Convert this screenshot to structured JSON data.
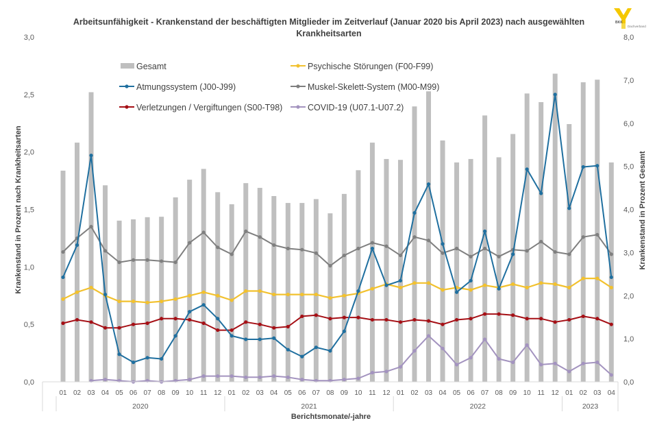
{
  "logo": {
    "text_top": "BKK",
    "text_side": "Dachverband",
    "color": "#f5c800"
  },
  "chart_data": {
    "type": "bar+line",
    "title": "Arbeitsunfähigkeit - Krankenstand der beschäftigten Mitglieder im Zeitverlauf (Januar 2020 bis April 2023) nach ausgewählten Krankheitsarten",
    "title_lines": [
      "Arbeitsunfähigkeit - Krankenstand der beschäftigten Mitglieder im Zeitverlauf (Januar 2020 bis April 2023) nach ausgewählten",
      "Krankheitsarten"
    ],
    "xlabel": "Berichtsmonate/-jahre",
    "ylabel_left": "Krankenstand in Prozent nach Krankheitsarten",
    "ylabel_right": "Krankenstand in Prozent Gesamt",
    "ylim_left": [
      0,
      3
    ],
    "ylim_right": [
      0,
      8
    ],
    "yticks_left": [
      "0,0",
      "0,5",
      "1,0",
      "1,5",
      "2,0",
      "2,5",
      "3,0"
    ],
    "yticks_right": [
      "0,0",
      "1,0",
      "2,0",
      "3,0",
      "4,0",
      "5,0",
      "6,0",
      "7,0",
      "8,0"
    ],
    "grid": false,
    "legend_position": "top-left (inside plot)",
    "years": [
      {
        "label": "2020",
        "months": 12
      },
      {
        "label": "2021",
        "months": 12
      },
      {
        "label": "2022",
        "months": 12
      },
      {
        "label": "2023",
        "months": 4
      }
    ],
    "categories": [
      "01",
      "02",
      "03",
      "04",
      "05",
      "06",
      "07",
      "08",
      "09",
      "10",
      "11",
      "12",
      "01",
      "02",
      "03",
      "04",
      "05",
      "06",
      "07",
      "08",
      "09",
      "10",
      "11",
      "12",
      "01",
      "02",
      "03",
      "04",
      "05",
      "06",
      "07",
      "08",
      "09",
      "10",
      "11",
      "12",
      "01",
      "02",
      "03",
      "04"
    ],
    "series": [
      {
        "name": "Gesamt",
        "type": "bar",
        "axis": "right",
        "color": "#bfbfbf",
        "values": [
          4.9,
          5.55,
          6.72,
          4.56,
          3.74,
          3.77,
          3.82,
          3.83,
          4.28,
          4.69,
          4.94,
          4.4,
          4.12,
          4.61,
          4.5,
          4.31,
          4.15,
          4.15,
          4.24,
          3.91,
          4.36,
          4.91,
          5.55,
          5.17,
          5.15,
          6.39,
          6.74,
          5.6,
          5.09,
          5.17,
          6.18,
          5.21,
          5.75,
          6.69,
          6.49,
          7.15,
          5.98,
          6.95,
          7.01,
          5.09
        ]
      },
      {
        "name": "Psychische Störungen (F00-F99)",
        "type": "line",
        "axis": "left",
        "color": "#f2c12e",
        "values": [
          0.72,
          0.78,
          0.82,
          0.75,
          0.7,
          0.7,
          0.69,
          0.7,
          0.72,
          0.75,
          0.78,
          0.75,
          0.71,
          0.79,
          0.79,
          0.76,
          0.76,
          0.76,
          0.76,
          0.73,
          0.75,
          0.77,
          0.81,
          0.85,
          0.82,
          0.86,
          0.86,
          0.8,
          0.82,
          0.8,
          0.84,
          0.82,
          0.85,
          0.82,
          0.86,
          0.85,
          0.82,
          0.9,
          0.9,
          0.82
        ]
      },
      {
        "name": "Atmungssystem (J00-J99)",
        "type": "line",
        "axis": "left",
        "color": "#1f6f9f",
        "values": [
          0.91,
          1.19,
          1.97,
          0.76,
          0.24,
          0.17,
          0.21,
          0.2,
          0.4,
          0.61,
          0.67,
          0.55,
          0.4,
          0.37,
          0.37,
          0.38,
          0.28,
          0.22,
          0.3,
          0.27,
          0.44,
          0.79,
          1.16,
          0.84,
          0.88,
          1.47,
          1.72,
          1.2,
          0.78,
          0.88,
          1.31,
          0.81,
          1.11,
          1.85,
          1.64,
          2.5,
          1.51,
          1.87,
          1.88,
          0.91
        ]
      },
      {
        "name": "Muskel-Skelett-System (M00-M99)",
        "type": "line",
        "axis": "left",
        "color": "#7f7f7f",
        "values": [
          1.13,
          1.25,
          1.35,
          1.14,
          1.04,
          1.06,
          1.06,
          1.05,
          1.04,
          1.21,
          1.3,
          1.17,
          1.11,
          1.31,
          1.26,
          1.19,
          1.16,
          1.15,
          1.12,
          1.01,
          1.1,
          1.16,
          1.21,
          1.18,
          1.1,
          1.26,
          1.23,
          1.12,
          1.16,
          1.09,
          1.16,
          1.09,
          1.15,
          1.14,
          1.22,
          1.13,
          1.11,
          1.26,
          1.28,
          1.11
        ]
      },
      {
        "name": "Verletzungen / Vergiftungen (S00-T98)",
        "type": "line",
        "axis": "left",
        "color": "#a50f15",
        "values": [
          0.51,
          0.54,
          0.52,
          0.47,
          0.47,
          0.5,
          0.51,
          0.55,
          0.55,
          0.54,
          0.51,
          0.45,
          0.45,
          0.52,
          0.5,
          0.47,
          0.48,
          0.57,
          0.58,
          0.55,
          0.56,
          0.56,
          0.54,
          0.54,
          0.52,
          0.54,
          0.53,
          0.5,
          0.54,
          0.55,
          0.59,
          0.59,
          0.58,
          0.55,
          0.55,
          0.52,
          0.54,
          0.57,
          0.55,
          0.5
        ]
      },
      {
        "name": "COVID-19 (U07.1-U07.2)",
        "type": "line",
        "axis": "left",
        "color": "#a393bf",
        "values": [
          null,
          null,
          0.01,
          0.02,
          0.01,
          0.0,
          0.01,
          0.0,
          0.01,
          0.02,
          0.05,
          0.05,
          0.05,
          0.04,
          0.04,
          0.05,
          0.04,
          0.02,
          0.01,
          0.01,
          0.02,
          0.03,
          0.08,
          0.09,
          0.13,
          0.27,
          0.4,
          0.29,
          0.15,
          0.21,
          0.37,
          0.2,
          0.17,
          0.32,
          0.15,
          0.16,
          0.09,
          0.16,
          0.17,
          0.06
        ]
      }
    ],
    "legend_order": [
      0,
      1,
      2,
      3,
      4,
      5
    ]
  }
}
